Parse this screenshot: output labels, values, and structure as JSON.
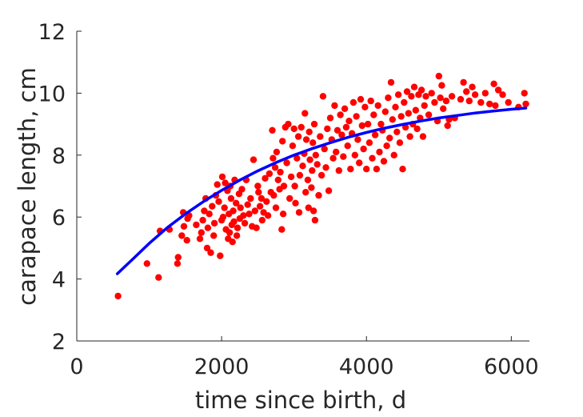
{
  "chart_data": {
    "type": "scatter",
    "title": "",
    "xlabel": "time since birth, d",
    "ylabel": "carapace length, cm",
    "xlim": [
      0,
      6250
    ],
    "ylim": [
      2,
      12
    ],
    "xticks": [
      0,
      2000,
      4000,
      6000
    ],
    "yticks": [
      2,
      4,
      6,
      8,
      10,
      12
    ],
    "xtick_labels": [
      "0",
      "2000",
      "4000",
      "6000"
    ],
    "ytick_labels": [
      "2",
      "4",
      "6",
      "8",
      "10",
      "12"
    ],
    "grid": false,
    "legend": "none",
    "series": [
      {
        "kind": "points",
        "color": "#ff0000",
        "points": [
          [
            570,
            3.45
          ],
          [
            970,
            4.5
          ],
          [
            1130,
            4.05
          ],
          [
            1150,
            5.55
          ],
          [
            1280,
            5.6
          ],
          [
            1390,
            4.5
          ],
          [
            1400,
            4.7
          ],
          [
            1450,
            5.4
          ],
          [
            1470,
            6.15
          ],
          [
            1480,
            5.7
          ],
          [
            1520,
            5.25
          ],
          [
            1530,
            5.95
          ],
          [
            1550,
            6.05
          ],
          [
            1650,
            5.75
          ],
          [
            1700,
            5.3
          ],
          [
            1720,
            5.5
          ],
          [
            1740,
            5.9
          ],
          [
            1760,
            6.2
          ],
          [
            1780,
            6.6
          ],
          [
            1800,
            5.0
          ],
          [
            1810,
            5.65
          ],
          [
            1830,
            6.1
          ],
          [
            1850,
            4.85
          ],
          [
            1870,
            6.35
          ],
          [
            1890,
            5.4
          ],
          [
            1900,
            5.8
          ],
          [
            1920,
            6.7
          ],
          [
            1940,
            7.05
          ],
          [
            1960,
            6.5
          ],
          [
            1980,
            4.75
          ],
          [
            2000,
            5.9
          ],
          [
            2010,
            7.3
          ],
          [
            2020,
            6.0
          ],
          [
            2040,
            6.3
          ],
          [
            2050,
            7.1
          ],
          [
            2060,
            5.6
          ],
          [
            2080,
            6.85
          ],
          [
            2090,
            5.3
          ],
          [
            2100,
            6.1
          ],
          [
            2110,
            5.5
          ],
          [
            2120,
            7.0
          ],
          [
            2130,
            6.6
          ],
          [
            2140,
            5.75
          ],
          [
            2150,
            5.2
          ],
          [
            2160,
            6.2
          ],
          [
            2170,
            5.85
          ],
          [
            2180,
            7.2
          ],
          [
            2200,
            6.45
          ],
          [
            2210,
            5.4
          ],
          [
            2220,
            5.65
          ],
          [
            2240,
            6.75
          ],
          [
            2250,
            5.95
          ],
          [
            2260,
            6.3
          ],
          [
            2280,
            6.9
          ],
          [
            2300,
            6.05
          ],
          [
            2320,
            5.8
          ],
          [
            2340,
            7.2
          ],
          [
            2360,
            6.4
          ],
          [
            2380,
            6.1
          ],
          [
            2400,
            6.6
          ],
          [
            2420,
            5.7
          ],
          [
            2440,
            7.85
          ],
          [
            2460,
            6.2
          ],
          [
            2480,
            5.65
          ],
          [
            2500,
            7.0
          ],
          [
            2510,
            6.8
          ],
          [
            2530,
            6.35
          ],
          [
            2550,
            6.6
          ],
          [
            2560,
            5.9
          ],
          [
            2580,
            6.15
          ],
          [
            2600,
            7.25
          ],
          [
            2620,
            6.5
          ],
          [
            2640,
            6.05
          ],
          [
            2660,
            7.4
          ],
          [
            2680,
            6.8
          ],
          [
            2700,
            8.8
          ],
          [
            2710,
            7.9
          ],
          [
            2720,
            6.7
          ],
          [
            2740,
            7.6
          ],
          [
            2750,
            6.3
          ],
          [
            2760,
            8.1
          ],
          [
            2780,
            7.2
          ],
          [
            2800,
            6.9
          ],
          [
            2810,
            7.45
          ],
          [
            2830,
            5.6
          ],
          [
            2840,
            8.45
          ],
          [
            2850,
            6.1
          ],
          [
            2860,
            7.0
          ],
          [
            2880,
            8.9
          ],
          [
            2900,
            7.75
          ],
          [
            2920,
            9.0
          ],
          [
            2940,
            6.6
          ],
          [
            2960,
            7.3
          ],
          [
            2980,
            8.3
          ],
          [
            3000,
            8.85
          ],
          [
            3010,
            7.0
          ],
          [
            3020,
            6.45
          ],
          [
            3040,
            7.9
          ],
          [
            3060,
            8.6
          ],
          [
            3070,
            6.15
          ],
          [
            3080,
            7.35
          ],
          [
            3100,
            8.9
          ],
          [
            3120,
            7.65
          ],
          [
            3140,
            8.05
          ],
          [
            3150,
            9.35
          ],
          [
            3160,
            6.8
          ],
          [
            3170,
            8.5
          ],
          [
            3190,
            7.2
          ],
          [
            3200,
            6.3
          ],
          [
            3210,
            8.75
          ],
          [
            3220,
            7.85
          ],
          [
            3240,
            6.95
          ],
          [
            3250,
            7.5
          ],
          [
            3260,
            8.4
          ],
          [
            3270,
            6.2
          ],
          [
            3280,
            9.0
          ],
          [
            3290,
            5.9
          ],
          [
            3300,
            8.0
          ],
          [
            3320,
            7.7
          ],
          [
            3340,
            6.7
          ],
          [
            3360,
            8.6
          ],
          [
            3380,
            7.35
          ],
          [
            3400,
            9.9
          ],
          [
            3420,
            8.2
          ],
          [
            3440,
            7.6
          ],
          [
            3460,
            8.85
          ],
          [
            3480,
            6.85
          ],
          [
            3500,
            9.2
          ],
          [
            3520,
            8.5
          ],
          [
            3540,
            7.9
          ],
          [
            3560,
            9.6
          ],
          [
            3580,
            8.1
          ],
          [
            3600,
            8.8
          ],
          [
            3620,
            7.5
          ],
          [
            3640,
            9.3
          ],
          [
            3660,
            8.65
          ],
          [
            3680,
            7.95
          ],
          [
            3700,
            9.5
          ],
          [
            3720,
            8.9
          ],
          [
            3740,
            8.3
          ],
          [
            3760,
            9.1
          ],
          [
            3780,
            7.55
          ],
          [
            3800,
            8.7
          ],
          [
            3820,
            9.7
          ],
          [
            3840,
            8.0
          ],
          [
            3860,
            9.25
          ],
          [
            3880,
            8.5
          ],
          [
            3900,
            7.75
          ],
          [
            3920,
            9.8
          ],
          [
            3940,
            8.95
          ],
          [
            3960,
            8.2
          ],
          [
            3980,
            9.55
          ],
          [
            4000,
            7.55
          ],
          [
            4020,
            9.0
          ],
          [
            4040,
            8.4
          ],
          [
            4060,
            9.75
          ],
          [
            4080,
            7.9
          ],
          [
            4100,
            9.3
          ],
          [
            4120,
            8.65
          ],
          [
            4140,
            7.55
          ],
          [
            4160,
            9.6
          ],
          [
            4180,
            8.1
          ],
          [
            4200,
            9.0
          ],
          [
            4220,
            8.8
          ],
          [
            4240,
            7.8
          ],
          [
            4260,
            9.4
          ],
          [
            4280,
            8.3
          ],
          [
            4300,
            9.85
          ],
          [
            4320,
            8.55
          ],
          [
            4340,
            10.35
          ],
          [
            4360,
            9.15
          ],
          [
            4380,
            8.0
          ],
          [
            4400,
            9.55
          ],
          [
            4420,
            8.75
          ],
          [
            4440,
            9.95
          ],
          [
            4460,
            8.4
          ],
          [
            4480,
            9.25
          ],
          [
            4500,
            7.55
          ],
          [
            4520,
            9.7
          ],
          [
            4540,
            8.9
          ],
          [
            4560,
            10.05
          ],
          [
            4580,
            9.35
          ],
          [
            4600,
            8.6
          ],
          [
            4620,
            9.9
          ],
          [
            4640,
            9.0
          ],
          [
            4660,
            10.2
          ],
          [
            4680,
            9.45
          ],
          [
            4700,
            8.85
          ],
          [
            4720,
            9.95
          ],
          [
            4740,
            9.2
          ],
          [
            4760,
            10.1
          ],
          [
            4780,
            8.6
          ],
          [
            4800,
            9.6
          ],
          [
            4820,
            9.9
          ],
          [
            4860,
            9.3
          ],
          [
            4900,
            10.0
          ],
          [
            4940,
            9.7
          ],
          [
            4980,
            9.1
          ],
          [
            5000,
            10.55
          ],
          [
            5020,
            9.85
          ],
          [
            5040,
            10.25
          ],
          [
            5060,
            9.5
          ],
          [
            5100,
            9.75
          ],
          [
            5120,
            8.95
          ],
          [
            5140,
            9.15
          ],
          [
            5180,
            9.9
          ],
          [
            5220,
            9.2
          ],
          [
            5300,
            9.8
          ],
          [
            5340,
            10.35
          ],
          [
            5380,
            10.05
          ],
          [
            5420,
            9.75
          ],
          [
            5460,
            10.2
          ],
          [
            5500,
            9.95
          ],
          [
            5580,
            9.7
          ],
          [
            5640,
            10.0
          ],
          [
            5700,
            9.65
          ],
          [
            5760,
            10.3
          ],
          [
            5780,
            9.6
          ],
          [
            5820,
            10.1
          ],
          [
            5880,
            9.95
          ],
          [
            5960,
            9.7
          ],
          [
            6100,
            9.55
          ],
          [
            6180,
            10.0
          ],
          [
            6200,
            9.65
          ]
        ]
      },
      {
        "kind": "line",
        "color": "#0000ff",
        "points": [
          [
            560,
            4.17
          ],
          [
            800,
            4.7
          ],
          [
            1000,
            5.15
          ],
          [
            1250,
            5.66
          ],
          [
            1500,
            6.1
          ],
          [
            1750,
            6.5
          ],
          [
            2000,
            6.86
          ],
          [
            2250,
            7.19
          ],
          [
            2500,
            7.49
          ],
          [
            2750,
            7.76
          ],
          [
            3000,
            8.0
          ],
          [
            3250,
            8.21
          ],
          [
            3500,
            8.4
          ],
          [
            3750,
            8.58
          ],
          [
            4000,
            8.73
          ],
          [
            4250,
            8.87
          ],
          [
            4500,
            8.99
          ],
          [
            4750,
            9.1
          ],
          [
            5000,
            9.2
          ],
          [
            5250,
            9.28
          ],
          [
            5500,
            9.36
          ],
          [
            5750,
            9.42
          ],
          [
            6000,
            9.48
          ],
          [
            6200,
            9.52
          ]
        ]
      }
    ]
  }
}
